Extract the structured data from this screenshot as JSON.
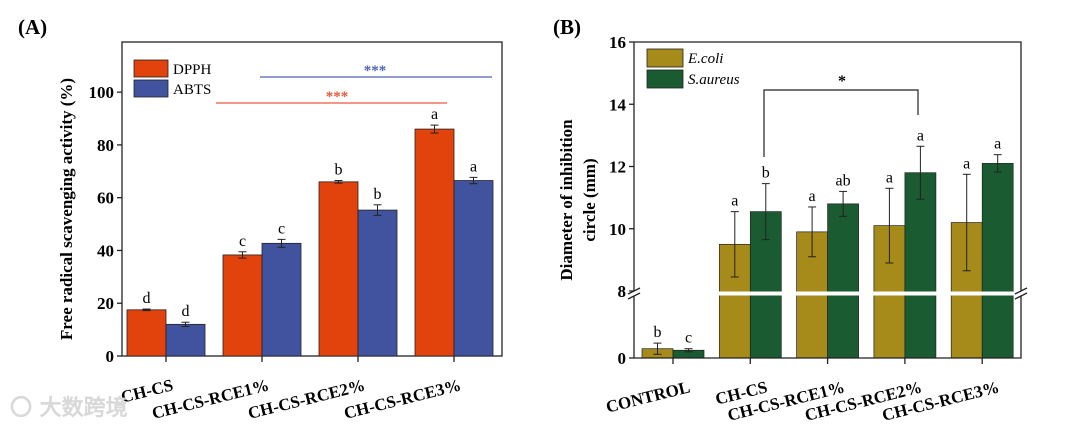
{
  "watermark": "大数跨境",
  "chart_data": [
    {
      "type": "bar",
      "panel_label": "(A)",
      "ylabel": "Free radical scavenging activity (%)",
      "xlabel": "",
      "ylim": [
        0,
        119
      ],
      "yticks": [
        0,
        20,
        40,
        60,
        80,
        100
      ],
      "categories": [
        "CH-CS",
        "CH-CS-RCE1%",
        "CH-CS-RCE2%",
        "CH-CS-RCE3%"
      ],
      "series": [
        {
          "name": "DPPH",
          "color": "#E2420B",
          "values": [
            17.5,
            38.3,
            66.0,
            86.0
          ],
          "errors": [
            0.3,
            1.2,
            0.5,
            1.5
          ],
          "letters": [
            "d",
            "c",
            "b",
            "a"
          ]
        },
        {
          "name": "ABTS",
          "color": "#41539F",
          "values": [
            12.0,
            42.7,
            55.3,
            66.5
          ],
          "errors": [
            0.8,
            1.5,
            2.0,
            1.2
          ],
          "letters": [
            "d",
            "c",
            "b",
            "a"
          ]
        }
      ],
      "significance": [
        {
          "label": "***",
          "color": "#4C63B0",
          "series": "ABTS",
          "from": "CH-CS-RCE1%",
          "to": "CH-CS-RCE3%"
        },
        {
          "label": "***",
          "color": "#E8593C",
          "series": "DPPH",
          "from": "CH-CS-RCE1%",
          "to": "CH-CS-RCE3%"
        }
      ],
      "legend": "top-left"
    },
    {
      "type": "bar",
      "panel_label": "(B)",
      "ylabel": "Diameter of inhibition circle (mm)",
      "ylabel_lines": [
        "Diameter of inhibition",
        "circle (mm)"
      ],
      "xlabel": "",
      "ylim": [
        0,
        16
      ],
      "axis_break": [
        2,
        8
      ],
      "yticks": [
        0,
        8,
        10,
        12,
        14,
        16
      ],
      "categories": [
        "CONTROL",
        "CH-CS",
        "CH-CS-RCE1%",
        "CH-CS-RCE2%",
        "CH-CS-RCE3%"
      ],
      "series": [
        {
          "name": "E.coli",
          "color": "#A68A1A",
          "values": [
            0.3,
            9.5,
            9.9,
            10.1,
            10.2
          ],
          "errors": [
            0.18,
            1.05,
            0.8,
            1.2,
            1.55
          ],
          "letters": [
            "b",
            "a",
            "a",
            "a",
            "a"
          ]
        },
        {
          "name": "S.aureus",
          "color": "#1B5B31",
          "values": [
            0.25,
            10.55,
            10.8,
            11.8,
            12.1
          ],
          "errors": [
            0.05,
            0.9,
            0.4,
            0.85,
            0.28
          ],
          "letters": [
            "c",
            "b",
            "ab",
            "a",
            "a"
          ]
        }
      ],
      "significance": [
        {
          "label": "*",
          "color": "#000000",
          "from": "CH-CS",
          "to": "CH-CS-RCE2%",
          "series": "S.aureus"
        }
      ],
      "legend": "top-left"
    }
  ]
}
